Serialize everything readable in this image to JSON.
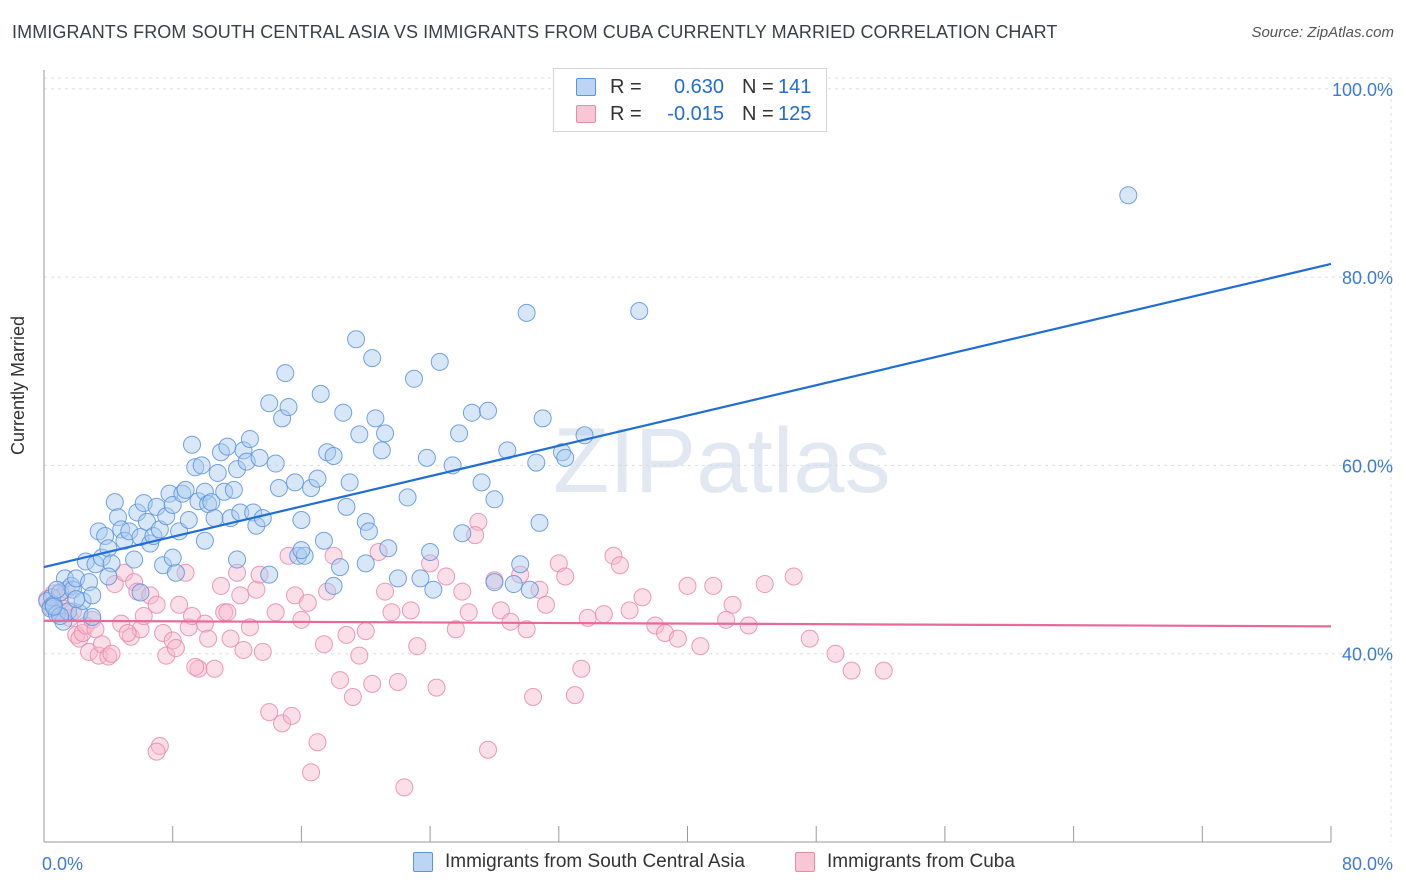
{
  "title": "IMMIGRANTS FROM SOUTH CENTRAL ASIA VS IMMIGRANTS FROM CUBA CURRENTLY MARRIED CORRELATION CHART",
  "source": "Source: ZipAtlas.com",
  "watermark": "ZIPatlas",
  "colors": {
    "blue": "#1f6dd6",
    "blue_fill": "#a9c9f0",
    "pink": "#e8699a",
    "pink_fill": "#f6b8cc",
    "grid": "#dedede",
    "axis_text_blue": "#3d7ad6"
  },
  "legend": {
    "r_label": "R =",
    "n_label": "N =",
    "series": [
      {
        "name": "Immigrants from South Central Asia",
        "r": "0.630",
        "n": "141",
        "color": "blue"
      },
      {
        "name": "Immigrants from Cuba",
        "r": "-0.015",
        "n": "125",
        "color": "pink"
      }
    ]
  },
  "chart_data": {
    "type": "scatter",
    "title": "IMMIGRANTS FROM SOUTH CENTRAL ASIA VS IMMIGRANTS FROM CUBA CURRENTLY MARRIED CORRELATION CHART",
    "ylabel": "Currently Married",
    "xlabel": "",
    "x_range": [
      0,
      80
    ],
    "y_range": [
      20,
      102
    ],
    "x_tick_labels": [
      "0.0%",
      "80.0%"
    ],
    "y_tick_values": [
      40,
      60,
      80,
      100
    ],
    "y_tick_labels": [
      "40.0%",
      "60.0%",
      "80.0%",
      "100.0%"
    ],
    "grid": true,
    "series": [
      {
        "name": "Immigrants from South Central Asia",
        "color": "blue",
        "trend": {
          "x": [
            0,
            80
          ],
          "y": [
            49.2,
            81.4
          ]
        },
        "points": [
          [
            0.2,
            45.6
          ],
          [
            0.4,
            44.8
          ],
          [
            0.5,
            46.0
          ],
          [
            0.6,
            45.2
          ],
          [
            0.8,
            44.2
          ],
          [
            1.0,
            46.5
          ],
          [
            1.2,
            43.4
          ],
          [
            1.3,
            48.0
          ],
          [
            1.5,
            44.5
          ],
          [
            1.7,
            47.2
          ],
          [
            1.8,
            46.8
          ],
          [
            2.0,
            48.0
          ],
          [
            2.2,
            44.3
          ],
          [
            2.4,
            45.6
          ],
          [
            2.6,
            49.8
          ],
          [
            2.8,
            47.6
          ],
          [
            3.0,
            43.9
          ],
          [
            3.2,
            49.5
          ],
          [
            3.4,
            53.0
          ],
          [
            3.6,
            50.2
          ],
          [
            3.8,
            52.5
          ],
          [
            4.0,
            51.2
          ],
          [
            4.2,
            49.6
          ],
          [
            4.4,
            56.1
          ],
          [
            4.6,
            54.5
          ],
          [
            4.8,
            53.2
          ],
          [
            5.0,
            52.0
          ],
          [
            5.3,
            53.0
          ],
          [
            5.6,
            50.0
          ],
          [
            5.8,
            55.0
          ],
          [
            6.0,
            52.4
          ],
          [
            6.2,
            56.0
          ],
          [
            6.4,
            54.0
          ],
          [
            6.6,
            51.7
          ],
          [
            6.8,
            52.5
          ],
          [
            7.0,
            55.6
          ],
          [
            7.2,
            53.2
          ],
          [
            7.4,
            49.4
          ],
          [
            7.6,
            54.6
          ],
          [
            7.8,
            57.0
          ],
          [
            8.0,
            55.8
          ],
          [
            8.2,
            48.6
          ],
          [
            8.4,
            53.0
          ],
          [
            8.6,
            57.0
          ],
          [
            8.8,
            57.4
          ],
          [
            9.0,
            54.2
          ],
          [
            9.2,
            62.2
          ],
          [
            9.4,
            59.8
          ],
          [
            9.6,
            56.2
          ],
          [
            9.8,
            60.0
          ],
          [
            10.0,
            57.2
          ],
          [
            10.2,
            55.9
          ],
          [
            10.4,
            56.1
          ],
          [
            10.6,
            54.4
          ],
          [
            10.8,
            59.2
          ],
          [
            11.0,
            61.4
          ],
          [
            11.2,
            57.2
          ],
          [
            11.4,
            62.0
          ],
          [
            11.6,
            54.4
          ],
          [
            11.8,
            57.4
          ],
          [
            12.0,
            59.6
          ],
          [
            12.2,
            55.0
          ],
          [
            12.4,
            61.6
          ],
          [
            12.6,
            60.4
          ],
          [
            12.8,
            62.8
          ],
          [
            13.0,
            55.0
          ],
          [
            13.2,
            53.6
          ],
          [
            13.4,
            60.8
          ],
          [
            13.6,
            54.4
          ],
          [
            14.0,
            66.6
          ],
          [
            14.4,
            60.2
          ],
          [
            14.6,
            57.6
          ],
          [
            14.8,
            65.0
          ],
          [
            15.0,
            69.8
          ],
          [
            15.2,
            66.2
          ],
          [
            15.6,
            58.2
          ],
          [
            15.8,
            50.4
          ],
          [
            16.0,
            54.2
          ],
          [
            16.2,
            50.4
          ],
          [
            16.6,
            57.6
          ],
          [
            17.0,
            58.6
          ],
          [
            17.2,
            67.6
          ],
          [
            17.4,
            52.0
          ],
          [
            17.6,
            61.4
          ],
          [
            18.0,
            61.0
          ],
          [
            18.4,
            49.2
          ],
          [
            18.6,
            65.6
          ],
          [
            18.8,
            55.6
          ],
          [
            19.0,
            58.2
          ],
          [
            19.4,
            73.4
          ],
          [
            19.6,
            63.3
          ],
          [
            20.0,
            54.0
          ],
          [
            20.2,
            53.0
          ],
          [
            20.4,
            71.4
          ],
          [
            20.6,
            65.0
          ],
          [
            21.0,
            61.6
          ],
          [
            21.2,
            63.4
          ],
          [
            21.4,
            51.2
          ],
          [
            22.6,
            56.6
          ],
          [
            23.0,
            69.2
          ],
          [
            23.4,
            48.0
          ],
          [
            23.8,
            60.8
          ],
          [
            24.2,
            46.8
          ],
          [
            24.6,
            71.0
          ],
          [
            25.4,
            60.0
          ],
          [
            25.8,
            63.4
          ],
          [
            26.6,
            65.6
          ],
          [
            27.2,
            58.2
          ],
          [
            27.6,
            65.8
          ],
          [
            28.0,
            56.4
          ],
          [
            28.8,
            61.6
          ],
          [
            29.2,
            47.4
          ],
          [
            29.6,
            49.5
          ],
          [
            30.0,
            76.2
          ],
          [
            30.2,
            46.8
          ],
          [
            30.6,
            60.3
          ],
          [
            30.8,
            53.9
          ],
          [
            31.0,
            65.0
          ],
          [
            32.2,
            61.4
          ],
          [
            32.4,
            60.8
          ],
          [
            33.6,
            63.2
          ],
          [
            37.0,
            76.4
          ],
          [
            67.4,
            88.7
          ],
          [
            1.0,
            44.0
          ],
          [
            2.0,
            45.8
          ],
          [
            3.0,
            46.2
          ],
          [
            4.0,
            48.2
          ],
          [
            6.0,
            46.5
          ],
          [
            8.0,
            50.2
          ],
          [
            10.0,
            52.0
          ],
          [
            12.0,
            50.0
          ],
          [
            14.0,
            48.4
          ],
          [
            16.0,
            51.0
          ],
          [
            18.0,
            47.2
          ],
          [
            20.0,
            49.6
          ],
          [
            22.0,
            48.0
          ],
          [
            24.0,
            50.8
          ],
          [
            26.0,
            52.8
          ],
          [
            28.0,
            47.6
          ],
          [
            0.6,
            45.0
          ],
          [
            0.8,
            46.8
          ]
        ]
      },
      {
        "name": "Immigrants from Cuba",
        "color": "pink",
        "trend": {
          "x": [
            0,
            80
          ],
          "y": [
            43.5,
            42.9
          ]
        },
        "points": [
          [
            0.2,
            45.8
          ],
          [
            0.4,
            45.0
          ],
          [
            0.6,
            46.4
          ],
          [
            0.8,
            44.6
          ],
          [
            1.0,
            46.0
          ],
          [
            1.2,
            44.8
          ],
          [
            1.4,
            46.8
          ],
          [
            1.6,
            43.8
          ],
          [
            1.8,
            44.5
          ],
          [
            2.0,
            42.0
          ],
          [
            2.2,
            41.6
          ],
          [
            2.4,
            42.2
          ],
          [
            2.6,
            43.0
          ],
          [
            2.8,
            40.2
          ],
          [
            3.0,
            43.6
          ],
          [
            3.2,
            42.6
          ],
          [
            3.4,
            39.8
          ],
          [
            3.6,
            41.0
          ],
          [
            4.0,
            39.7
          ],
          [
            4.2,
            40.0
          ],
          [
            4.4,
            47.4
          ],
          [
            4.8,
            43.2
          ],
          [
            5.0,
            48.6
          ],
          [
            5.4,
            41.8
          ],
          [
            5.6,
            47.6
          ],
          [
            5.8,
            46.6
          ],
          [
            6.0,
            42.6
          ],
          [
            6.2,
            44.0
          ],
          [
            6.6,
            46.2
          ],
          [
            7.0,
            45.2
          ],
          [
            7.4,
            42.2
          ],
          [
            7.6,
            39.8
          ],
          [
            8.0,
            41.4
          ],
          [
            8.2,
            40.6
          ],
          [
            8.4,
            45.2
          ],
          [
            8.8,
            48.6
          ],
          [
            9.0,
            42.8
          ],
          [
            9.2,
            44.0
          ],
          [
            9.6,
            38.4
          ],
          [
            10.0,
            43.2
          ],
          [
            10.2,
            41.6
          ],
          [
            10.6,
            38.4
          ],
          [
            11.0,
            47.2
          ],
          [
            11.2,
            44.4
          ],
          [
            11.6,
            41.6
          ],
          [
            12.0,
            48.6
          ],
          [
            12.2,
            46.2
          ],
          [
            12.4,
            40.4
          ],
          [
            12.8,
            42.8
          ],
          [
            13.2,
            46.8
          ],
          [
            13.6,
            40.2
          ],
          [
            14.0,
            33.8
          ],
          [
            14.4,
            44.4
          ],
          [
            14.8,
            32.6
          ],
          [
            15.2,
            50.4
          ],
          [
            15.4,
            33.4
          ],
          [
            15.6,
            46.2
          ],
          [
            16.0,
            43.6
          ],
          [
            16.4,
            45.4
          ],
          [
            16.6,
            27.4
          ],
          [
            17.0,
            30.6
          ],
          [
            17.4,
            41.0
          ],
          [
            17.6,
            46.6
          ],
          [
            18.0,
            50.4
          ],
          [
            18.4,
            37.2
          ],
          [
            18.8,
            42.0
          ],
          [
            19.2,
            35.4
          ],
          [
            19.6,
            39.8
          ],
          [
            20.0,
            42.4
          ],
          [
            20.4,
            36.8
          ],
          [
            20.8,
            50.8
          ],
          [
            21.2,
            46.6
          ],
          [
            21.6,
            44.4
          ],
          [
            22.0,
            37.0
          ],
          [
            22.4,
            25.8
          ],
          [
            22.8,
            44.6
          ],
          [
            23.2,
            40.8
          ],
          [
            24.0,
            49.6
          ],
          [
            24.4,
            36.4
          ],
          [
            25.0,
            48.2
          ],
          [
            25.6,
            42.6
          ],
          [
            26.0,
            46.6
          ],
          [
            26.4,
            44.4
          ],
          [
            27.0,
            54.0
          ],
          [
            27.6,
            29.8
          ],
          [
            28.0,
            47.8
          ],
          [
            28.4,
            44.6
          ],
          [
            29.0,
            43.4
          ],
          [
            29.6,
            48.4
          ],
          [
            30.0,
            42.6
          ],
          [
            30.4,
            35.4
          ],
          [
            30.8,
            46.8
          ],
          [
            31.2,
            45.2
          ],
          [
            32.0,
            49.6
          ],
          [
            32.4,
            48.2
          ],
          [
            33.0,
            35.6
          ],
          [
            33.4,
            38.4
          ],
          [
            33.8,
            43.8
          ],
          [
            34.8,
            44.2
          ],
          [
            35.4,
            50.4
          ],
          [
            35.8,
            49.4
          ],
          [
            36.4,
            44.6
          ],
          [
            37.2,
            46.0
          ],
          [
            38.0,
            43.0
          ],
          [
            38.6,
            42.2
          ],
          [
            39.4,
            41.6
          ],
          [
            40.0,
            47.2
          ],
          [
            40.8,
            40.8
          ],
          [
            41.6,
            47.2
          ],
          [
            42.4,
            43.6
          ],
          [
            42.8,
            45.2
          ],
          [
            43.8,
            43.0
          ],
          [
            44.8,
            47.4
          ],
          [
            46.6,
            48.2
          ],
          [
            47.6,
            41.6
          ],
          [
            49.2,
            40.0
          ],
          [
            50.2,
            38.2
          ],
          [
            52.2,
            38.2
          ],
          [
            13.4,
            48.4
          ],
          [
            11.4,
            44.4
          ],
          [
            9.4,
            38.6
          ],
          [
            7.2,
            30.2
          ],
          [
            7.0,
            29.6
          ],
          [
            5.2,
            42.2
          ],
          [
            26.8,
            52.6
          ]
        ]
      }
    ]
  }
}
